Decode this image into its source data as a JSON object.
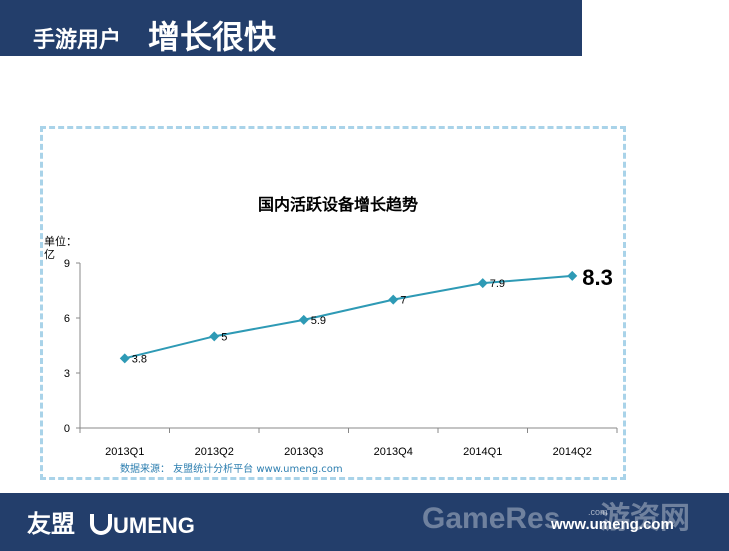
{
  "header": {
    "title_small": "手游用户",
    "title_large": "增长很快"
  },
  "chart_data": {
    "type": "line",
    "title": "国内活跃设备增长趋势",
    "unit_label_line1": "单位：",
    "unit_label_line2": "亿",
    "categories": [
      "2013Q1",
      "2013Q2",
      "2013Q3",
      "2013Q4",
      "2014Q1",
      "2014Q2"
    ],
    "series": [
      {
        "values": [
          3.8,
          5,
          5.9,
          7,
          7.9,
          8.3
        ]
      }
    ],
    "data_labels": [
      "3.8",
      "5",
      "5.9",
      "7",
      "7.9",
      "8.3"
    ],
    "yticks": [
      "0",
      "3",
      "6",
      "9"
    ],
    "ylim": [
      0,
      9
    ],
    "source": "数据来源： 友盟统计分析平台 www.umeng.com",
    "line_color": "#2e9ab5",
    "grid": false
  },
  "footer": {
    "logo_cn": "友盟",
    "logo_en": "UMENG",
    "watermark": "GameRes",
    "watermark_cn": "游资网",
    "watermark_dotcom": ".com",
    "website": "www.umeng.com"
  }
}
